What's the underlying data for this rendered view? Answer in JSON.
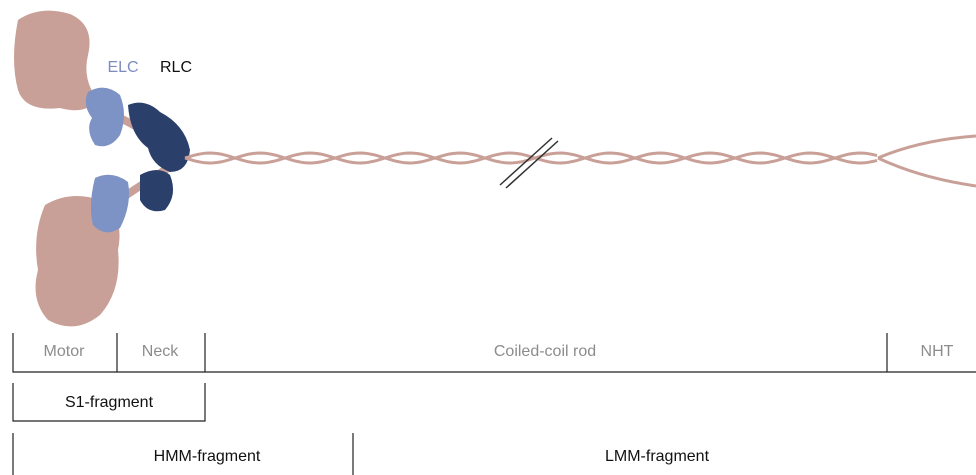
{
  "light_chains": [
    "ELC",
    "RLC"
  ],
  "domains": [
    "Motor",
    "Neck",
    "Coiled-coil rod",
    "NHT"
  ],
  "fragments": [
    "S1-fragment",
    "HMM-fragment",
    "LMM-fragment"
  ]
}
